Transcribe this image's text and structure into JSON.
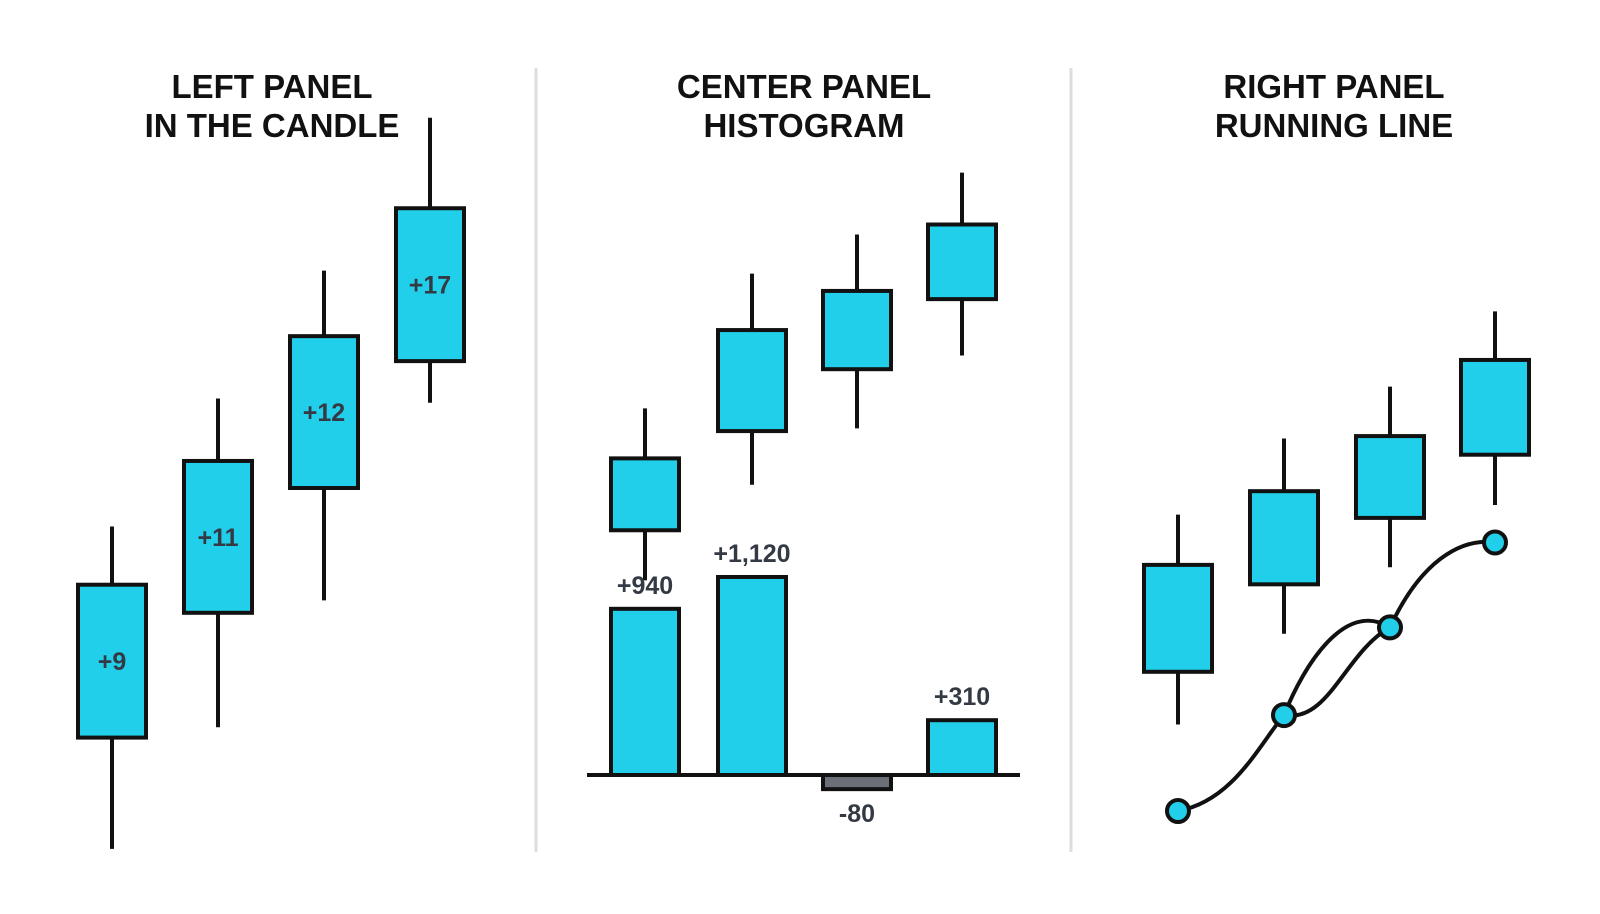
{
  "colors": {
    "body": "#22cfea",
    "outline": "#111111",
    "negative": "#6b7078",
    "label": "#333a44",
    "divider": "#dddddd"
  },
  "panels": [
    {
      "title_line1": "LEFT PANEL",
      "title_line2": "IN THE CANDLE"
    },
    {
      "title_line1": "CENTER PANEL",
      "title_line2": "HISTOGRAM"
    },
    {
      "title_line1": "RIGHT PANEL",
      "title_line2": "RUNNING LINE"
    }
  ],
  "chart_data": [
    {
      "type": "candlestick",
      "panel": "left",
      "candles": [
        {
          "open": 660,
          "close": 807,
          "low": 553,
          "high": 863,
          "label": "+9"
        },
        {
          "open": 780,
          "close": 926,
          "low": 670,
          "high": 986,
          "label": "+11"
        },
        {
          "open": 900,
          "close": 1046,
          "low": 792,
          "high": 1109,
          "label": "+12"
        },
        {
          "open": 1022,
          "close": 1169,
          "low": 982,
          "high": 1256,
          "label": "+17"
        }
      ]
    },
    {
      "type": "candlestick",
      "panel": "center-top",
      "candles": [
        {
          "open": 903,
          "close": 982,
          "low": 848,
          "high": 1037
        },
        {
          "open": 1012,
          "close": 1123,
          "low": 953,
          "high": 1185
        },
        {
          "open": 1080,
          "close": 1166,
          "low": 1015,
          "high": 1228
        },
        {
          "open": 1157,
          "close": 1239,
          "low": 1095,
          "high": 1296
        }
      ]
    },
    {
      "type": "bar",
      "panel": "center-bottom",
      "values": [
        940,
        1120,
        -80,
        310
      ],
      "labels": [
        "+940",
        "+1,120",
        "-80",
        "+310"
      ]
    },
    {
      "type": "candlestick",
      "panel": "right-top",
      "candles": [
        {
          "open": 820,
          "close": 952,
          "low": 755,
          "high": 1014
        },
        {
          "open": 928,
          "close": 1043,
          "low": 867,
          "high": 1108
        },
        {
          "open": 1010,
          "close": 1111,
          "low": 949,
          "high": 1172
        },
        {
          "open": 1088,
          "close": 1205,
          "low": 1026,
          "high": 1265
        }
      ]
    },
    {
      "type": "line",
      "panel": "right-bottom",
      "series": [
        {
          "values": [
            0,
            1.75,
            3.35,
            4.9
          ]
        },
        {
          "values": [
            0,
            1.75,
            3.35,
            4.9
          ]
        }
      ]
    }
  ]
}
